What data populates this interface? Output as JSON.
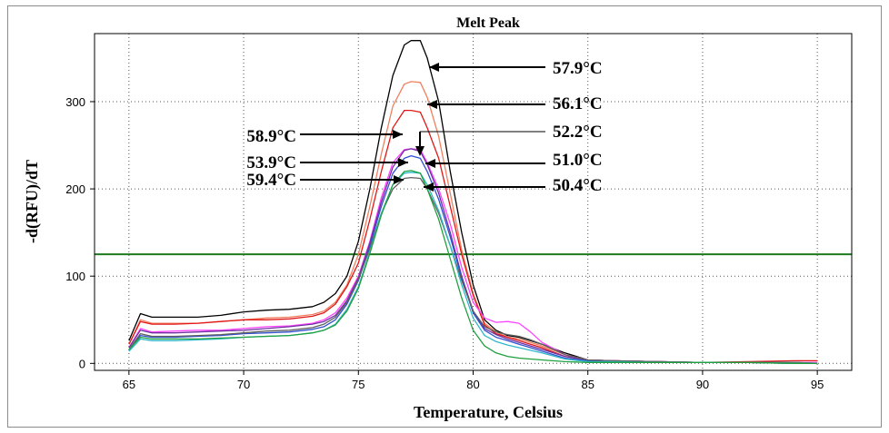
{
  "chart_data": {
    "type": "line",
    "title": "Melt Peak",
    "xlabel": "Temperature, Celsius",
    "ylabel": "-d(RFU)/dT",
    "xlim": [
      63.5,
      96.5
    ],
    "ylim": [
      -8,
      378
    ],
    "x_ticks": [
      65,
      70,
      75,
      80,
      85,
      90,
      95
    ],
    "y_ticks": [
      0,
      100,
      200,
      300
    ],
    "grid": true,
    "threshold": {
      "value": 125,
      "color": "#1e7a1e"
    },
    "x": [
      65,
      65.5,
      66,
      67,
      68,
      69,
      70,
      71,
      72,
      73,
      73.5,
      74,
      74.5,
      75,
      75.5,
      76,
      76.5,
      77,
      77.3,
      77.7,
      78,
      78.5,
      79,
      79.5,
      80,
      80.5,
      81,
      81.5,
      82,
      82.5,
      83,
      84,
      85,
      86,
      88,
      90,
      92,
      94,
      95
    ],
    "series": [
      {
        "color": "#000000",
        "values": [
          26,
          57,
          53,
          53,
          53,
          55,
          59,
          61,
          62,
          65,
          70,
          80,
          100,
          140,
          200,
          270,
          330,
          365,
          370,
          370,
          350,
          300,
          220,
          150,
          90,
          50,
          38,
          32,
          30,
          26,
          22,
          12,
          4,
          3,
          2,
          1,
          1,
          0,
          0
        ]
      },
      {
        "color": "#f08060",
        "values": [
          22,
          50,
          46,
          46,
          46,
          48,
          50,
          52,
          53,
          56,
          60,
          70,
          90,
          125,
          180,
          240,
          295,
          320,
          323,
          322,
          305,
          260,
          195,
          130,
          80,
          46,
          36,
          30,
          28,
          24,
          20,
          10,
          4,
          3,
          2,
          1,
          1,
          1,
          0
        ]
      },
      {
        "color": "#e01818",
        "values": [
          22,
          48,
          45,
          45,
          46,
          48,
          50,
          50,
          51,
          54,
          58,
          68,
          88,
          115,
          165,
          220,
          270,
          290,
          290,
          288,
          270,
          235,
          180,
          125,
          78,
          44,
          34,
          30,
          26,
          22,
          18,
          8,
          4,
          3,
          2,
          1,
          2,
          3,
          3
        ]
      },
      {
        "color": "#ff44ff",
        "values": [
          18,
          40,
          36,
          37,
          38,
          38,
          40,
          42,
          43,
          46,
          50,
          58,
          75,
          100,
          140,
          190,
          230,
          245,
          246,
          245,
          230,
          200,
          160,
          110,
          70,
          52,
          47,
          48,
          46,
          36,
          24,
          10,
          4,
          3,
          2,
          1,
          1,
          1,
          1
        ]
      },
      {
        "color": "#7030a0",
        "values": [
          18,
          38,
          35,
          35,
          36,
          37,
          38,
          40,
          42,
          45,
          48,
          55,
          72,
          98,
          138,
          185,
          225,
          244,
          246,
          243,
          228,
          195,
          150,
          100,
          60,
          40,
          33,
          28,
          24,
          20,
          16,
          8,
          4,
          3,
          2,
          1,
          1,
          1,
          0
        ]
      },
      {
        "color": "#3050d0",
        "values": [
          15,
          32,
          30,
          30,
          31,
          32,
          34,
          35,
          36,
          39,
          42,
          50,
          68,
          95,
          135,
          180,
          218,
          235,
          238,
          235,
          220,
          188,
          145,
          98,
          58,
          38,
          30,
          26,
          22,
          18,
          14,
          6,
          3,
          2,
          1,
          1,
          1,
          1,
          0
        ]
      },
      {
        "color": "#606060",
        "values": [
          16,
          34,
          31,
          31,
          32,
          33,
          35,
          37,
          38,
          41,
          45,
          53,
          70,
          96,
          132,
          172,
          200,
          212,
          213,
          212,
          200,
          172,
          135,
          95,
          60,
          42,
          36,
          33,
          31,
          27,
          22,
          10,
          4,
          3,
          2,
          1,
          1,
          1,
          0
        ]
      },
      {
        "color": "#30b8c8",
        "values": [
          14,
          28,
          26,
          26,
          27,
          28,
          30,
          31,
          32,
          35,
          38,
          45,
          62,
          88,
          128,
          172,
          205,
          218,
          219,
          218,
          205,
          175,
          135,
          90,
          52,
          32,
          25,
          21,
          18,
          15,
          12,
          5,
          2,
          2,
          1,
          1,
          1,
          0,
          0
        ]
      },
      {
        "color": "#20a040",
        "values": [
          16,
          30,
          28,
          28,
          28,
          29,
          30,
          31,
          32,
          35,
          38,
          44,
          60,
          86,
          126,
          170,
          205,
          220,
          221,
          218,
          200,
          165,
          120,
          75,
          38,
          20,
          12,
          8,
          6,
          5,
          4,
          2,
          1,
          1,
          1,
          1,
          1,
          0,
          0
        ]
      }
    ],
    "annotations": [
      {
        "text": "57.9°C"
      },
      {
        "text": "56.1°C"
      },
      {
        "text": "52.2°C"
      },
      {
        "text": "58.9°C"
      },
      {
        "text": "53.9°C"
      },
      {
        "text": "51.0°C"
      },
      {
        "text": "59.4°C"
      },
      {
        "text": "50.4°C"
      }
    ]
  }
}
